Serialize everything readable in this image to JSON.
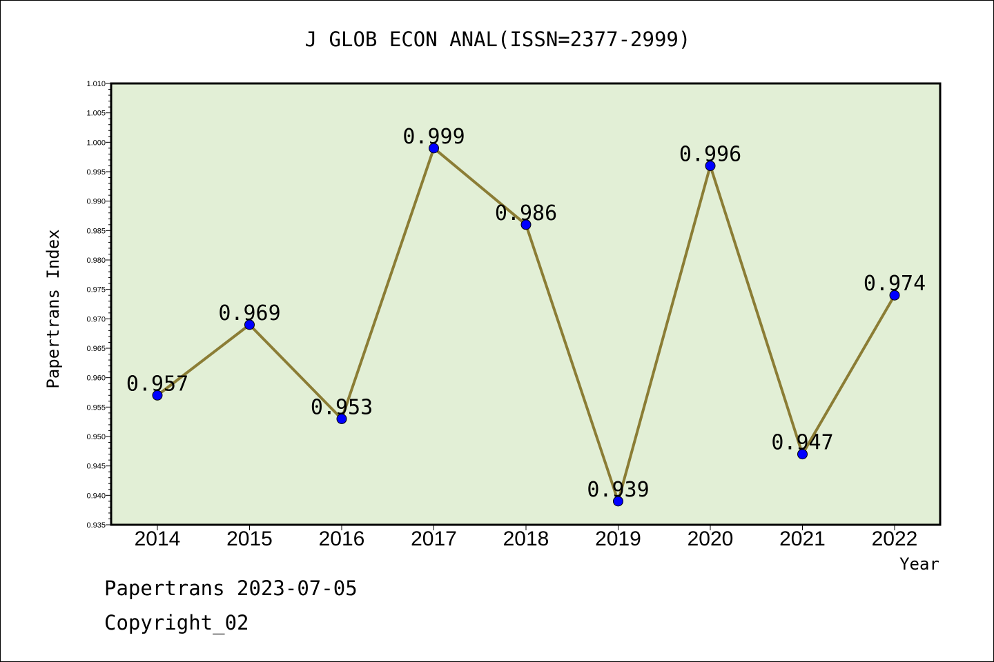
{
  "chart_data": {
    "type": "line",
    "title": "J GLOB ECON ANAL(ISSN=2377-2999)",
    "xlabel": "Year",
    "ylabel": "Papertrans Index",
    "categories": [
      "2014",
      "2015",
      "2016",
      "2017",
      "2018",
      "2019",
      "2020",
      "2021",
      "2022"
    ],
    "values": [
      0.957,
      0.969,
      0.953,
      0.999,
      0.986,
      0.939,
      0.996,
      0.947,
      0.974
    ],
    "data_labels": [
      "0.957",
      "0.969",
      "0.953",
      "0.999",
      "0.986",
      "0.939",
      "0.996",
      "0.947",
      "0.974"
    ],
    "ylim": [
      0.935,
      1.01
    ],
    "yticks": [
      "0.935",
      "0.940",
      "0.945",
      "0.950",
      "0.955",
      "0.960",
      "0.965",
      "0.970",
      "0.975",
      "0.980",
      "0.985",
      "0.990",
      "0.995",
      "1.000",
      "1.005",
      "1.010"
    ],
    "grid": false,
    "colors": {
      "plot_background": "#e2efd6",
      "line": "#8b7d35",
      "marker": "#0000ff"
    }
  },
  "footer": {
    "source": "Papertrans 2023-07-05",
    "copyright": "Copyright_02"
  }
}
